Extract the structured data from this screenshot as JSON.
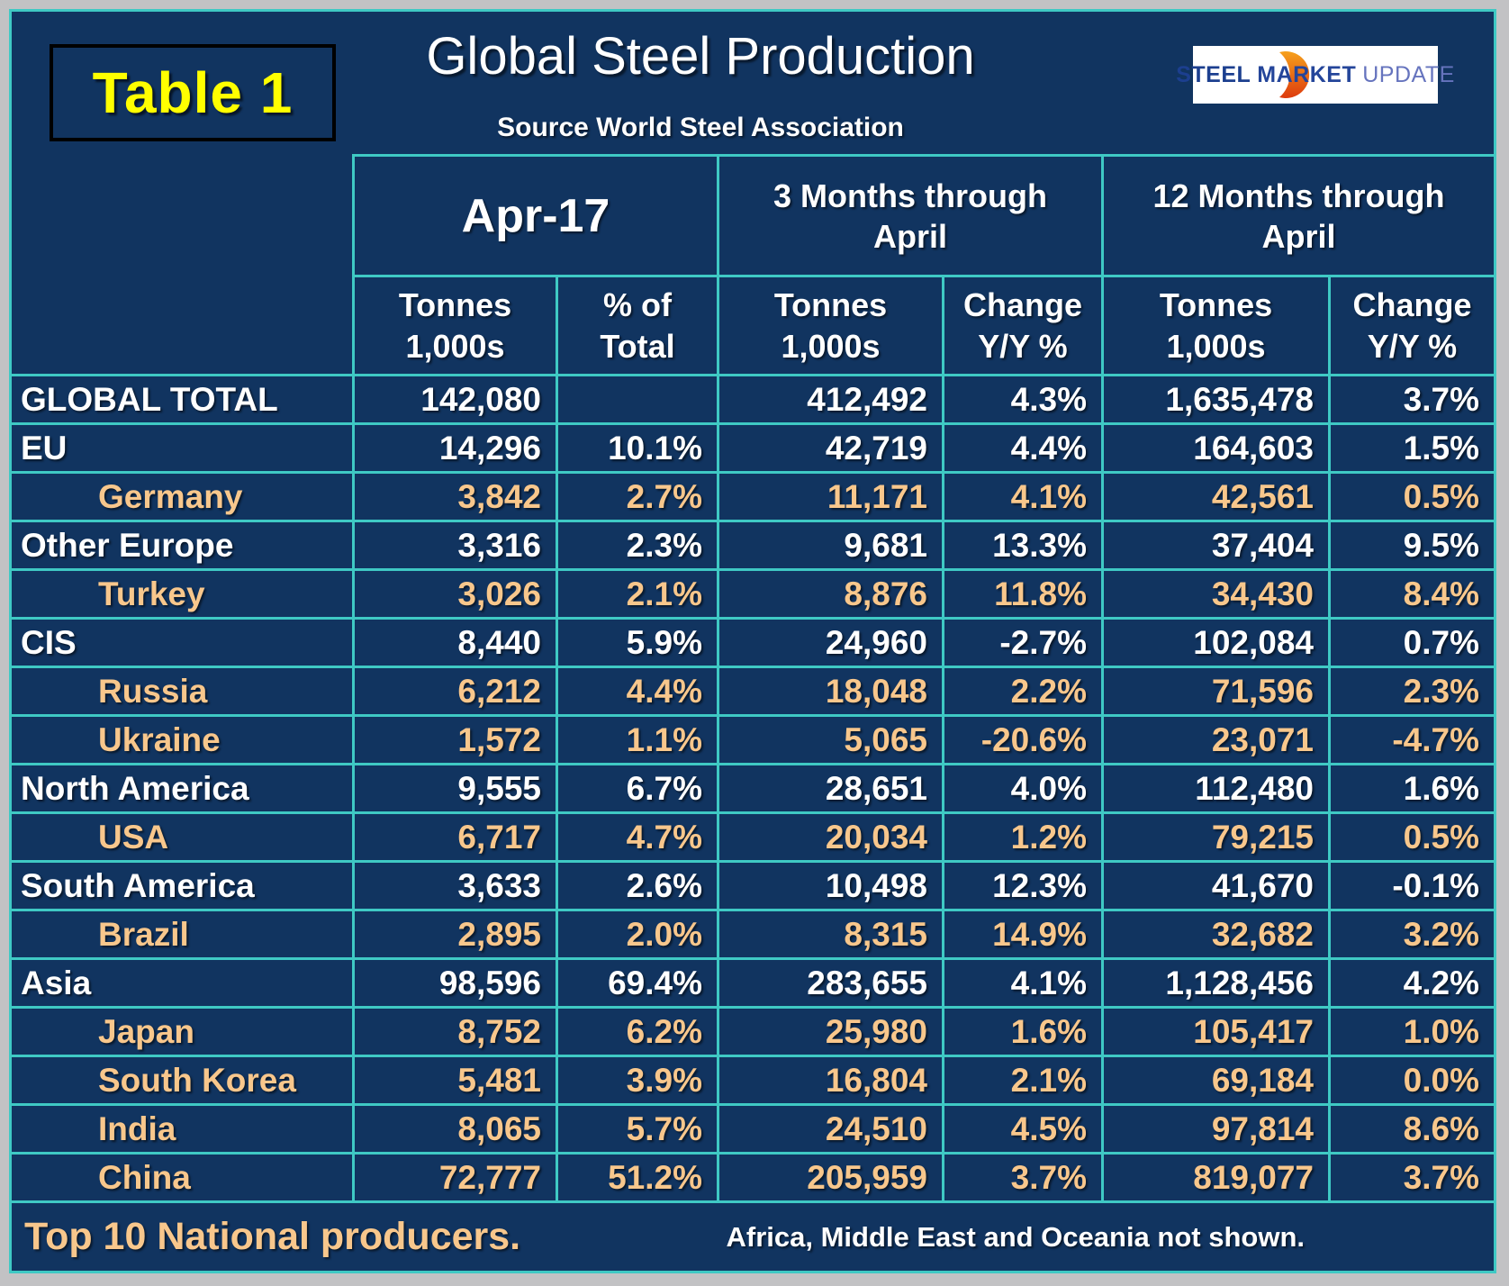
{
  "badge": "Table 1",
  "title": "Global Steel Production",
  "subtitle": "Source World Steel Association",
  "logo": {
    "steel": "STEEL",
    "market": "MARKET",
    "update": "UPDATE"
  },
  "headers": {
    "month": "Apr-17",
    "three_months_line1": "3 Months through",
    "three_months_line2": "April",
    "twelve_months_line1": "12 Months through",
    "twelve_months_line2": "April",
    "tonnes_line1": "Tonnes",
    "tonnes_line2": "1,000s",
    "pct_line1": "% of",
    "pct_line2": "Total",
    "change_line1": "Change",
    "change_line2": "Y/Y %"
  },
  "footer": {
    "left": "Top 10 National producers.",
    "right": "Africa, Middle East and Oceania not shown."
  },
  "colors": {
    "background_navy": "#113460",
    "grid_teal": "#3fc9c4",
    "country_tan": "#f8c78c",
    "badge_yellow": "#ffff00",
    "frame_gray": "#c2c2c4",
    "logo_orange": "#e8560f",
    "logo_navy": "#1c3f8f",
    "logo_periwinkle": "#6674be"
  },
  "chart_data": {
    "type": "table",
    "title": "Global Steel Production",
    "source": "Source World Steel Association",
    "column_groups": [
      "Apr-17",
      "3 Months through April",
      "12 Months through April"
    ],
    "columns": [
      "Tonnes 1,000s",
      "% of Total",
      "Tonnes 1,000s",
      "Change Y/Y %",
      "Tonnes 1,000s",
      "Change Y/Y %"
    ],
    "rows": [
      {
        "label": "GLOBAL TOTAL",
        "level": "region",
        "apr_tonnes": "142,080",
        "pct_total": "",
        "m3_tonnes": "412,492",
        "m3_change": "4.3%",
        "m12_tonnes": "1,635,478",
        "m12_change": "3.7%"
      },
      {
        "label": "EU",
        "level": "region",
        "apr_tonnes": "14,296",
        "pct_total": "10.1%",
        "m3_tonnes": "42,719",
        "m3_change": "4.4%",
        "m12_tonnes": "164,603",
        "m12_change": "1.5%"
      },
      {
        "label": "Germany",
        "level": "country",
        "apr_tonnes": "3,842",
        "pct_total": "2.7%",
        "m3_tonnes": "11,171",
        "m3_change": "4.1%",
        "m12_tonnes": "42,561",
        "m12_change": "0.5%"
      },
      {
        "label": "Other Europe",
        "level": "region",
        "apr_tonnes": "3,316",
        "pct_total": "2.3%",
        "m3_tonnes": "9,681",
        "m3_change": "13.3%",
        "m12_tonnes": "37,404",
        "m12_change": "9.5%"
      },
      {
        "label": "Turkey",
        "level": "country",
        "apr_tonnes": "3,026",
        "pct_total": "2.1%",
        "m3_tonnes": "8,876",
        "m3_change": "11.8%",
        "m12_tonnes": "34,430",
        "m12_change": "8.4%"
      },
      {
        "label": "CIS",
        "level": "region",
        "apr_tonnes": "8,440",
        "pct_total": "5.9%",
        "m3_tonnes": "24,960",
        "m3_change": "-2.7%",
        "m12_tonnes": "102,084",
        "m12_change": "0.7%"
      },
      {
        "label": "Russia",
        "level": "country",
        "apr_tonnes": "6,212",
        "pct_total": "4.4%",
        "m3_tonnes": "18,048",
        "m3_change": "2.2%",
        "m12_tonnes": "71,596",
        "m12_change": "2.3%"
      },
      {
        "label": "Ukraine",
        "level": "country",
        "apr_tonnes": "1,572",
        "pct_total": "1.1%",
        "m3_tonnes": "5,065",
        "m3_change": "-20.6%",
        "m12_tonnes": "23,071",
        "m12_change": "-4.7%"
      },
      {
        "label": "North America",
        "level": "region",
        "apr_tonnes": "9,555",
        "pct_total": "6.7%",
        "m3_tonnes": "28,651",
        "m3_change": "4.0%",
        "m12_tonnes": "112,480",
        "m12_change": "1.6%"
      },
      {
        "label": "USA",
        "level": "country",
        "apr_tonnes": "6,717",
        "pct_total": "4.7%",
        "m3_tonnes": "20,034",
        "m3_change": "1.2%",
        "m12_tonnes": "79,215",
        "m12_change": "0.5%"
      },
      {
        "label": "South America",
        "level": "region",
        "apr_tonnes": "3,633",
        "pct_total": "2.6%",
        "m3_tonnes": "10,498",
        "m3_change": "12.3%",
        "m12_tonnes": "41,670",
        "m12_change": "-0.1%"
      },
      {
        "label": "Brazil",
        "level": "country",
        "apr_tonnes": "2,895",
        "pct_total": "2.0%",
        "m3_tonnes": "8,315",
        "m3_change": "14.9%",
        "m12_tonnes": "32,682",
        "m12_change": "3.2%"
      },
      {
        "label": "Asia",
        "level": "region",
        "apr_tonnes": "98,596",
        "pct_total": "69.4%",
        "m3_tonnes": "283,655",
        "m3_change": "4.1%",
        "m12_tonnes": "1,128,456",
        "m12_change": "4.2%"
      },
      {
        "label": "Japan",
        "level": "country",
        "apr_tonnes": "8,752",
        "pct_total": "6.2%",
        "m3_tonnes": "25,980",
        "m3_change": "1.6%",
        "m12_tonnes": "105,417",
        "m12_change": "1.0%"
      },
      {
        "label": "South Korea",
        "level": "country",
        "apr_tonnes": "5,481",
        "pct_total": "3.9%",
        "m3_tonnes": "16,804",
        "m3_change": "2.1%",
        "m12_tonnes": "69,184",
        "m12_change": "0.0%"
      },
      {
        "label": "India",
        "level": "country",
        "apr_tonnes": "8,065",
        "pct_total": "5.7%",
        "m3_tonnes": "24,510",
        "m3_change": "4.5%",
        "m12_tonnes": "97,814",
        "m12_change": "8.6%"
      },
      {
        "label": "China",
        "level": "country",
        "apr_tonnes": "72,777",
        "pct_total": "51.2%",
        "m3_tonnes": "205,959",
        "m3_change": "3.7%",
        "m12_tonnes": "819,077",
        "m12_change": "3.7%"
      }
    ]
  }
}
